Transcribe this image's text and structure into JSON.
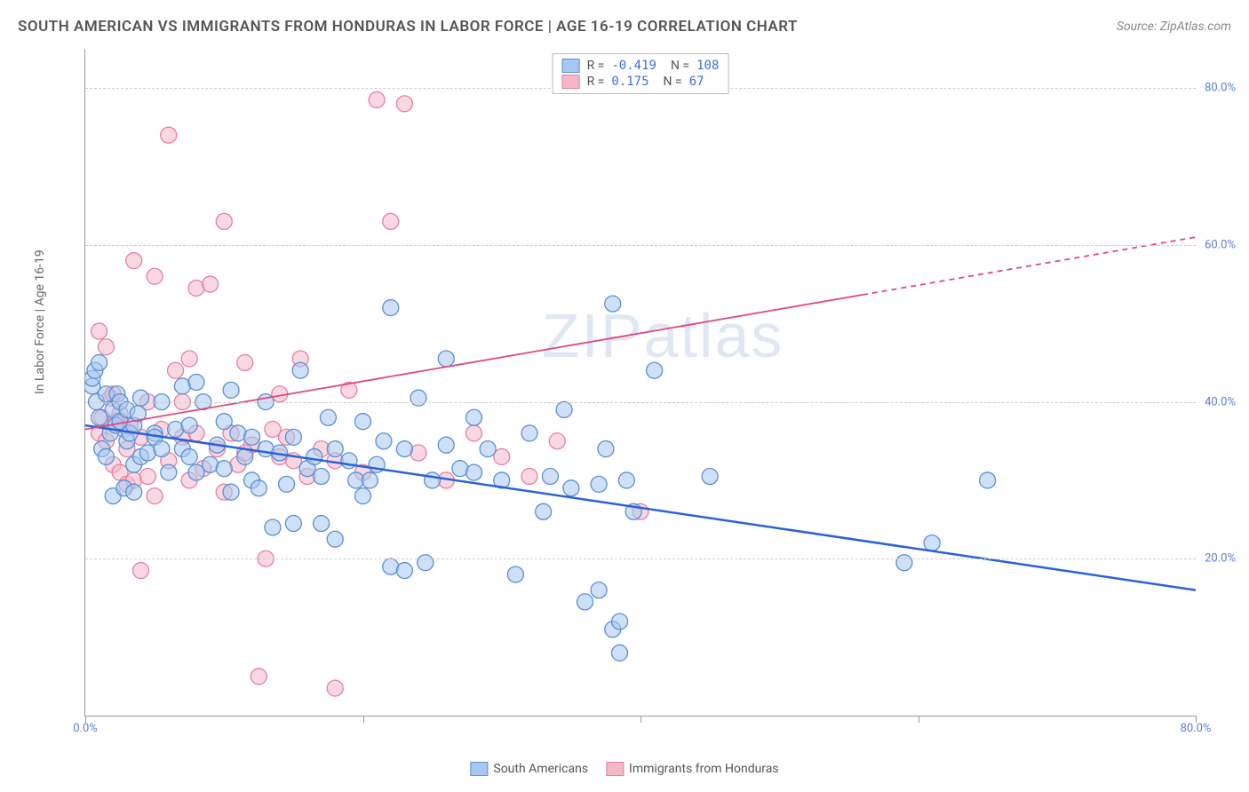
{
  "header": {
    "title": "SOUTH AMERICAN VS IMMIGRANTS FROM HONDURAS IN LABOR FORCE | AGE 16-19 CORRELATION CHART",
    "source": "Source: ZipAtlas.com"
  },
  "chart": {
    "type": "scatter",
    "ylabel": "In Labor Force | Age 16-19",
    "xlim": [
      0,
      80
    ],
    "ylim": [
      0,
      85
    ],
    "xtick_positions": [
      0,
      40,
      80
    ],
    "xtick_labels": [
      "0.0%",
      "",
      "80.0%"
    ],
    "ytick_positions": [
      20,
      40,
      60,
      80
    ],
    "ytick_labels": [
      "20.0%",
      "40.0%",
      "60.0%",
      "80.0%"
    ],
    "grid_color": "#cccccc",
    "background_color": "#ffffff",
    "series": [
      {
        "name": "South Americans",
        "marker_fill": "#a6c8f0",
        "marker_stroke": "#5b8fd6",
        "marker_opacity": 0.55,
        "marker_radius": 9,
        "line_color": "#2962d9",
        "line_width": 2.5,
        "R": "-0.419",
        "N": "108",
        "trend": {
          "x1": 0,
          "y1": 37,
          "x2": 80,
          "y2": 16
        },
        "points": [
          [
            0.5,
            42
          ],
          [
            0.5,
            43
          ],
          [
            0.7,
            44
          ],
          [
            0.8,
            40
          ],
          [
            1.0,
            45
          ],
          [
            1.0,
            38
          ],
          [
            1.2,
            34
          ],
          [
            1.5,
            41
          ],
          [
            1.5,
            33
          ],
          [
            1.8,
            36
          ],
          [
            2.0,
            28
          ],
          [
            2.0,
            39
          ],
          [
            2.2,
            37
          ],
          [
            2.3,
            41
          ],
          [
            2.5,
            40
          ],
          [
            2.5,
            37.5
          ],
          [
            2.8,
            29
          ],
          [
            3.0,
            39
          ],
          [
            3.0,
            35
          ],
          [
            3.2,
            36
          ],
          [
            3.5,
            37
          ],
          [
            3.5,
            32
          ],
          [
            3.8,
            38.5
          ],
          [
            4.0,
            33
          ],
          [
            4.0,
            40.5
          ],
          [
            4.5,
            33.5
          ],
          [
            5.0,
            36
          ],
          [
            5.0,
            35.5
          ],
          [
            5.5,
            34
          ],
          [
            6.0,
            31
          ],
          [
            6.5,
            36.5
          ],
          [
            7.0,
            42
          ],
          [
            7.0,
            34
          ],
          [
            7.5,
            33
          ],
          [
            8.0,
            31
          ],
          [
            8.5,
            40
          ],
          [
            9.0,
            32
          ],
          [
            9.5,
            34.5
          ],
          [
            10.0,
            37.5
          ],
          [
            10.0,
            31.5
          ],
          [
            10.5,
            28.5
          ],
          [
            11.0,
            36
          ],
          [
            11.5,
            33
          ],
          [
            12.0,
            30
          ],
          [
            12.0,
            35.5
          ],
          [
            12.5,
            29
          ],
          [
            13.0,
            34
          ],
          [
            13.5,
            24
          ],
          [
            14.0,
            33.5
          ],
          [
            14.5,
            29.5
          ],
          [
            15.0,
            35.5
          ],
          [
            15.0,
            24.5
          ],
          [
            15.5,
            44
          ],
          [
            16.0,
            31.5
          ],
          [
            16.5,
            33
          ],
          [
            17.0,
            30.5
          ],
          [
            17.5,
            38
          ],
          [
            18.0,
            22.5
          ],
          [
            18.0,
            34
          ],
          [
            19.0,
            32.5
          ],
          [
            19.5,
            30
          ],
          [
            20.0,
            28
          ],
          [
            20.0,
            37.5
          ],
          [
            21.0,
            32
          ],
          [
            21.5,
            35
          ],
          [
            22.0,
            52
          ],
          [
            22.0,
            19
          ],
          [
            23.0,
            18.5
          ],
          [
            23.0,
            34
          ],
          [
            24.0,
            40.5
          ],
          [
            24.5,
            19.5
          ],
          [
            25.0,
            30
          ],
          [
            26.0,
            34.5
          ],
          [
            26.0,
            45.5
          ],
          [
            27.0,
            31.5
          ],
          [
            28.0,
            31
          ],
          [
            28.0,
            38
          ],
          [
            29.0,
            34
          ],
          [
            30.0,
            30
          ],
          [
            31.0,
            18
          ],
          [
            32.0,
            36
          ],
          [
            33.0,
            26
          ],
          [
            33.5,
            30.5
          ],
          [
            34.5,
            39
          ],
          [
            35.0,
            29
          ],
          [
            36.0,
            14.5
          ],
          [
            37.0,
            16
          ],
          [
            37.0,
            29.5
          ],
          [
            37.5,
            34
          ],
          [
            38.0,
            52.5
          ],
          [
            38.0,
            11
          ],
          [
            38.5,
            12
          ],
          [
            38.5,
            8
          ],
          [
            39.0,
            30
          ],
          [
            39.5,
            26
          ],
          [
            8.0,
            42.5
          ],
          [
            10.5,
            41.5
          ],
          [
            41.0,
            44
          ],
          [
            45.0,
            30.5
          ],
          [
            59.0,
            19.5
          ],
          [
            61.0,
            22
          ],
          [
            65.0,
            30
          ],
          [
            3.5,
            28.5
          ],
          [
            5.5,
            40
          ],
          [
            7.5,
            37
          ],
          [
            13.0,
            40
          ],
          [
            17.0,
            24.5
          ],
          [
            20.5,
            30
          ]
        ]
      },
      {
        "name": "Immigrants from Honduras",
        "marker_fill": "#f5b8c8",
        "marker_stroke": "#e6809f",
        "marker_opacity": 0.55,
        "marker_radius": 9,
        "line_color": "#e0487a",
        "line_width": 1.8,
        "R": "0.175",
        "N": "67",
        "trend": {
          "x1": 0,
          "y1": 36.5,
          "x2": 80,
          "y2": 61,
          "solid_until": 56
        },
        "points": [
          [
            1.0,
            36
          ],
          [
            1.0,
            49
          ],
          [
            1.2,
            38
          ],
          [
            1.5,
            47
          ],
          [
            1.5,
            35
          ],
          [
            1.8,
            40.5
          ],
          [
            2.0,
            32
          ],
          [
            2.0,
            41
          ],
          [
            2.2,
            37.5
          ],
          [
            2.5,
            31
          ],
          [
            2.5,
            38.5
          ],
          [
            2.8,
            36.5
          ],
          [
            3.0,
            29.5
          ],
          [
            3.0,
            34
          ],
          [
            3.2,
            37
          ],
          [
            3.5,
            58
          ],
          [
            3.5,
            30
          ],
          [
            4.0,
            35.5
          ],
          [
            4.0,
            18.5
          ],
          [
            4.5,
            40
          ],
          [
            4.5,
            30.5
          ],
          [
            5.0,
            56
          ],
          [
            5.0,
            28
          ],
          [
            5.5,
            36.5
          ],
          [
            6.0,
            32.5
          ],
          [
            6.0,
            74
          ],
          [
            6.5,
            44
          ],
          [
            7.0,
            35.5
          ],
          [
            7.0,
            40
          ],
          [
            7.5,
            30
          ],
          [
            8.0,
            36
          ],
          [
            8.0,
            54.5
          ],
          [
            8.5,
            31.5
          ],
          [
            9.0,
            55
          ],
          [
            9.5,
            34
          ],
          [
            10.0,
            63
          ],
          [
            10.0,
            28.5
          ],
          [
            10.5,
            36
          ],
          [
            11.0,
            32
          ],
          [
            11.5,
            45
          ],
          [
            12.0,
            34.5
          ],
          [
            12.5,
            5
          ],
          [
            13.0,
            20
          ],
          [
            13.5,
            36.5
          ],
          [
            14.0,
            33
          ],
          [
            14.5,
            35.5
          ],
          [
            15.0,
            32.5
          ],
          [
            15.5,
            45.5
          ],
          [
            16.0,
            30.5
          ],
          [
            17.0,
            34
          ],
          [
            18.0,
            3.5
          ],
          [
            19.0,
            41.5
          ],
          [
            20.0,
            31
          ],
          [
            21.0,
            78.5
          ],
          [
            22.0,
            63
          ],
          [
            23.0,
            78
          ],
          [
            24.0,
            33.5
          ],
          [
            26.0,
            30
          ],
          [
            28.0,
            36
          ],
          [
            30.0,
            33
          ],
          [
            32.0,
            30.5
          ],
          [
            34.0,
            35
          ],
          [
            40.0,
            26
          ],
          [
            7.5,
            45.5
          ],
          [
            11.5,
            33.5
          ],
          [
            14.0,
            41
          ],
          [
            18.0,
            32.5
          ]
        ]
      }
    ],
    "legend_top": {
      "rows": [
        {
          "swatch_fill": "#a6c8f0",
          "swatch_stroke": "#5b8fd6",
          "r_label": "R =",
          "r_val": "-0.419",
          "n_label": "N =",
          "n_val": "108"
        },
        {
          "swatch_fill": "#f5b8c8",
          "swatch_stroke": "#e6809f",
          "r_label": "R =",
          "r_val": " 0.175",
          "n_label": "N =",
          "n_val": " 67"
        }
      ]
    },
    "legend_bottom": [
      {
        "swatch_fill": "#a6c8f0",
        "swatch_stroke": "#5b8fd6",
        "label": "South Americans"
      },
      {
        "swatch_fill": "#f5b8c8",
        "swatch_stroke": "#e6809f",
        "label": "Immigrants from Honduras"
      }
    ],
    "watermark": "ZIPatlas"
  }
}
